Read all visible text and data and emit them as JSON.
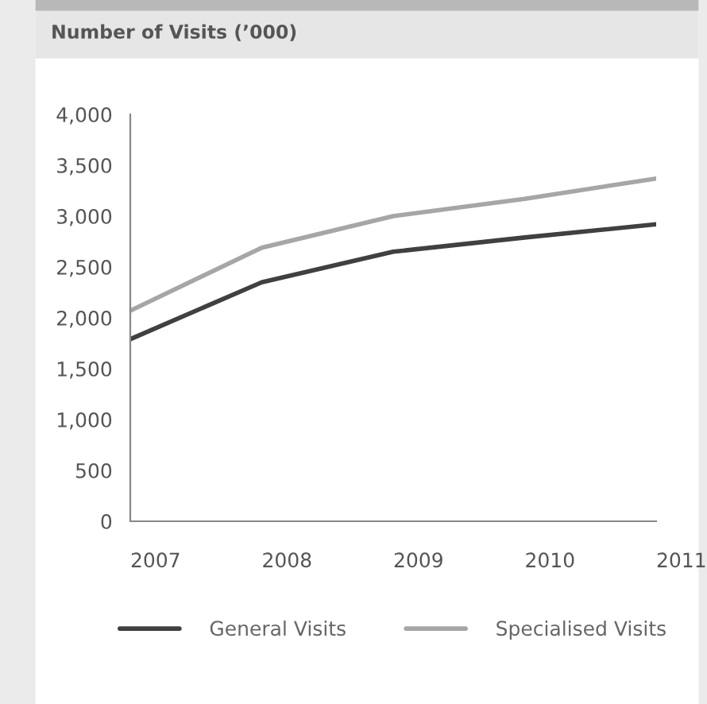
{
  "chart_data": {
    "type": "line",
    "title": "Number of Visits (’000)",
    "categories": [
      "2007",
      "2008",
      "2009",
      "2010",
      "2011"
    ],
    "series": [
      {
        "name": "General Visits",
        "color": "#404040",
        "values": [
          1790,
          2350,
          2650,
          2790,
          2920
        ]
      },
      {
        "name": "Specialised Visits",
        "color": "#a6a6a6",
        "values": [
          2070,
          2690,
          3000,
          3170,
          3370
        ]
      }
    ],
    "ylim": [
      0,
      4000
    ],
    "yticks": [
      {
        "value": 0,
        "label": "0"
      },
      {
        "value": 500,
        "label": "500"
      },
      {
        "value": 1000,
        "label": "1,000"
      },
      {
        "value": 1500,
        "label": "1,500"
      },
      {
        "value": 2000,
        "label": "2,000"
      },
      {
        "value": 2500,
        "label": "2,500"
      },
      {
        "value": 3000,
        "label": "3,000"
      },
      {
        "value": 3500,
        "label": "3,500"
      },
      {
        "value": 4000,
        "label": "4,000"
      }
    ],
    "grid": false,
    "legend": "bottom",
    "line_style": "solid",
    "marker": "none"
  }
}
